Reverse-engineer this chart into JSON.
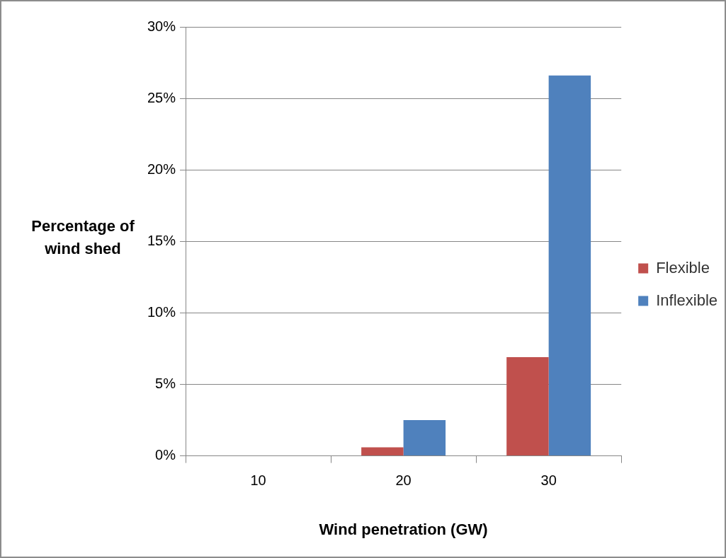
{
  "chart_data": {
    "type": "bar",
    "xlabel": "Wind penetration (GW)",
    "ylabel": "Percentage of wind shed",
    "categories": [
      "10",
      "20",
      "30"
    ],
    "series": [
      {
        "name": "Flexible",
        "color": "#c0504d",
        "values": [
          0,
          0.6,
          6.9
        ]
      },
      {
        "name": "Inflexible",
        "color": "#4f81bd",
        "values": [
          0,
          2.5,
          26.6
        ]
      }
    ],
    "ylim": [
      0,
      30
    ],
    "yticks": [
      {
        "value": 0,
        "label": "0%"
      },
      {
        "value": 5,
        "label": "5%"
      },
      {
        "value": 10,
        "label": "10%"
      },
      {
        "value": 15,
        "label": "15%"
      },
      {
        "value": 20,
        "label": "20%"
      },
      {
        "value": 25,
        "label": "25%"
      },
      {
        "value": 30,
        "label": "30%"
      }
    ],
    "grid": "y",
    "legend": "right"
  }
}
